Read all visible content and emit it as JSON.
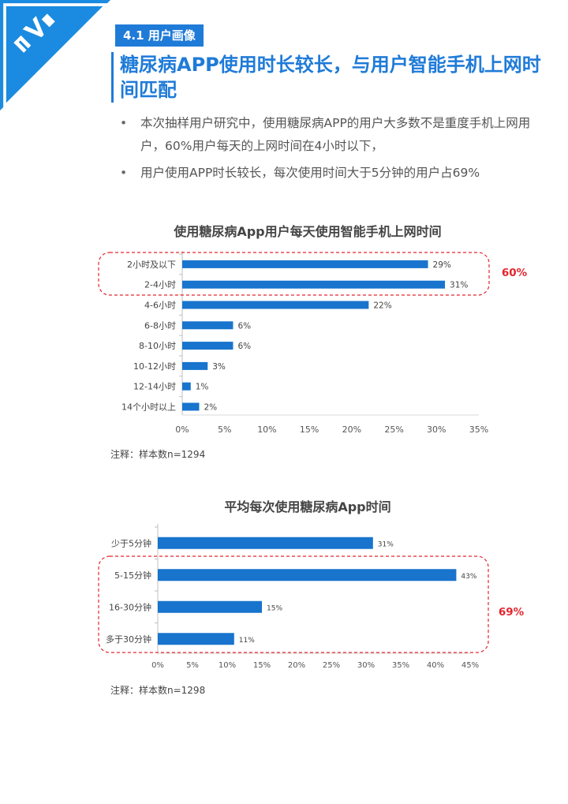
{
  "section": {
    "tag": "4.1 用户画像"
  },
  "title": "糖尿病APP使用时长较长，与用户智能手机上网时间匹配",
  "bullets": [
    "本次抽样用户研究中，使用糖尿病APP的用户大多数不是重度手机上网用户，60%用户每天的上网时间在4小时以下，",
    "用户使用APP时长较长，每次使用时间大于5分钟的用户占69%"
  ],
  "bullet_symbol": "•",
  "colors": {
    "accent": "#1f7bd8",
    "bar": "#1874cd",
    "highlight": "#e3262e",
    "corner": "#1a8be0"
  },
  "chart_data": [
    {
      "type": "bar",
      "orientation": "horizontal",
      "title": "使用糖尿病App用户每天使用智能手机上网时间",
      "categories": [
        "2小时及以下",
        "2-4小时",
        "4-6小时",
        "6-8小时",
        "8-10小时",
        "10-12小时",
        "12-14小时",
        "14个小时以上"
      ],
      "values": [
        29,
        31,
        22,
        6,
        6,
        3,
        1,
        2
      ],
      "value_labels": [
        "29%",
        "31%",
        "22%",
        "6%",
        "6%",
        "3%",
        "1%",
        "2%"
      ],
      "x_ticks": [
        0,
        5,
        10,
        15,
        20,
        25,
        30,
        35
      ],
      "x_tick_labels": [
        "0%",
        "5%",
        "10%",
        "15%",
        "20%",
        "25%",
        "30%",
        "35%"
      ],
      "xlim": [
        0,
        35
      ],
      "grid": false,
      "highlight": {
        "categories": [
          "2小时及以下",
          "2-4小时"
        ],
        "label": "60%"
      }
    },
    {
      "type": "bar",
      "orientation": "horizontal",
      "title": "平均每次使用糖尿病App时间",
      "categories": [
        "少于5分钟",
        "5-15分钟",
        "16-30分钟",
        "多于30分钟"
      ],
      "values": [
        31,
        43,
        15,
        11
      ],
      "value_labels": [
        "31%",
        "43%",
        "15%",
        "11%"
      ],
      "x_ticks": [
        0,
        5,
        10,
        15,
        20,
        25,
        30,
        35,
        40,
        45
      ],
      "x_tick_labels": [
        "0%",
        "5%",
        "10%",
        "15%",
        "20%",
        "25%",
        "30%",
        "35%",
        "40%",
        "45%"
      ],
      "xlim": [
        0,
        45
      ],
      "grid": false,
      "highlight": {
        "categories": [
          "5-15分钟",
          "16-30分钟",
          "多于30分钟"
        ],
        "label": "69%"
      }
    }
  ],
  "notes": [
    "注释：样本数n=1294",
    "注释：样本数n=1298"
  ]
}
